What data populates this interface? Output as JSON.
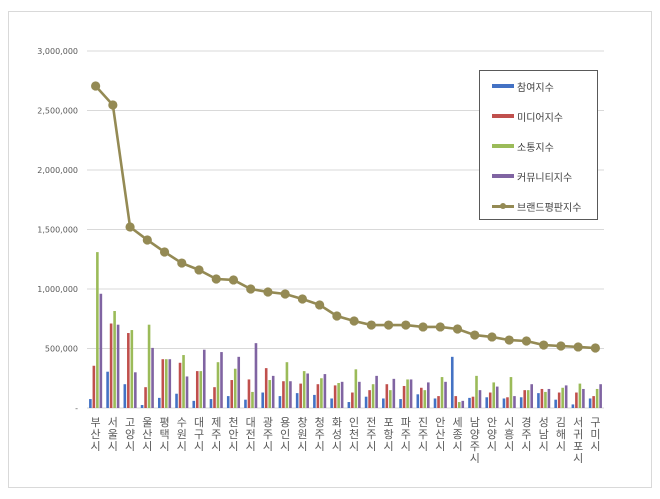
{
  "chart_data": {
    "type": "bar",
    "title": "",
    "xlabel": "",
    "ylabel": "",
    "ylim": [
      0,
      3000000
    ],
    "yticks": [
      0,
      500000,
      1000000,
      1500000,
      2000000,
      2500000,
      3000000
    ],
    "ytick_labels": [
      "-",
      "500,000",
      "1,000,000",
      "1,500,000",
      "2,000,000",
      "2,500,000",
      "3,000,000"
    ],
    "grid": true,
    "legend_position": "upper right (inside)",
    "categories": [
      "부산시",
      "서울시",
      "고양시",
      "울산시",
      "평택시",
      "수원시",
      "대구시",
      "제주시",
      "천안시",
      "대전시",
      "광주시",
      "용인시",
      "창원시",
      "청주시",
      "화성시",
      "인천시",
      "전주시",
      "포항시",
      "파주시",
      "진주시",
      "안산시",
      "세종시",
      "남양주시",
      "안양시",
      "시흥시",
      "경주시",
      "성남시",
      "김해시",
      "서귀포시",
      "구미시"
    ],
    "series": [
      {
        "name": "참여지수",
        "type": "bar",
        "color": "#4472c4",
        "values": [
          75000,
          305000,
          200000,
          25000,
          85000,
          120000,
          60000,
          75000,
          100000,
          70000,
          130000,
          100000,
          125000,
          110000,
          80000,
          50000,
          95000,
          80000,
          75000,
          115000,
          80000,
          430000,
          85000,
          90000,
          80000,
          90000,
          125000,
          70000,
          30000,
          80000
        ]
      },
      {
        "name": "미디어지수",
        "type": "bar",
        "color": "#c0504d",
        "values": [
          355000,
          710000,
          630000,
          175000,
          410000,
          380000,
          310000,
          175000,
          235000,
          240000,
          335000,
          225000,
          205000,
          200000,
          190000,
          130000,
          150000,
          200000,
          185000,
          170000,
          100000,
          100000,
          95000,
          130000,
          90000,
          150000,
          160000,
          130000,
          130000,
          100000
        ]
      },
      {
        "name": "소통지수",
        "type": "bar",
        "color": "#9bbb59",
        "values": [
          1310000,
          815000,
          655000,
          700000,
          410000,
          445000,
          310000,
          385000,
          330000,
          135000,
          235000,
          385000,
          310000,
          250000,
          210000,
          325000,
          200000,
          150000,
          240000,
          150000,
          260000,
          50000,
          270000,
          215000,
          260000,
          150000,
          135000,
          170000,
          205000,
          160000
        ]
      },
      {
        "name": "커뮤니티지수",
        "type": "bar",
        "color": "#8064a2",
        "values": [
          960000,
          700000,
          300000,
          505000,
          410000,
          265000,
          490000,
          470000,
          430000,
          545000,
          270000,
          225000,
          290000,
          285000,
          220000,
          220000,
          270000,
          245000,
          240000,
          215000,
          220000,
          60000,
          150000,
          180000,
          100000,
          200000,
          160000,
          190000,
          160000,
          200000
        ]
      },
      {
        "name": "브랜드평판지수",
        "type": "line",
        "color": "#948a54",
        "values": [
          2706000,
          2546000,
          1521000,
          1412000,
          1311000,
          1218000,
          1160000,
          1084000,
          1076000,
          1000000,
          975000,
          958000,
          916000,
          866000,
          773000,
          731000,
          697000,
          697000,
          697000,
          681000,
          681000,
          664000,
          613000,
          597000,
          571000,
          563000,
          529000,
          521000,
          513000,
          504000
        ]
      }
    ]
  },
  "legend": {
    "items": [
      {
        "label": "참여지수",
        "color": "#4472c4",
        "kind": "bar"
      },
      {
        "label": "미디어지수",
        "color": "#c0504d",
        "kind": "bar"
      },
      {
        "label": "소통지수",
        "color": "#9bbb59",
        "kind": "bar"
      },
      {
        "label": "커뮤니티지수",
        "color": "#8064a2",
        "kind": "bar"
      },
      {
        "label": "브랜드평판지수",
        "color": "#948a54",
        "kind": "line"
      }
    ]
  }
}
